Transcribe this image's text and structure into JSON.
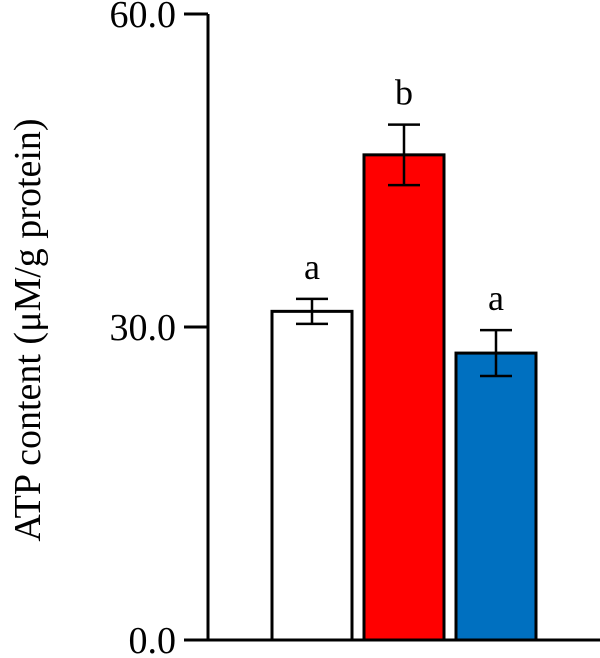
{
  "chart_data": {
    "type": "bar",
    "title": "",
    "xlabel": "",
    "ylabel": "ATP content (μM/g protein)",
    "ylim": [
      0,
      60
    ],
    "yticks": [
      "0.0",
      "30.0",
      "60.0"
    ],
    "grid": false,
    "bars": [
      {
        "value": 31.5,
        "error": 1.2,
        "letter": "a",
        "color": "#ffffff"
      },
      {
        "value": 46.5,
        "error": 2.9,
        "letter": "b",
        "color": "#ff0000"
      },
      {
        "value": 27.5,
        "error": 2.2,
        "letter": "a",
        "color": "#0070c0"
      }
    ]
  }
}
